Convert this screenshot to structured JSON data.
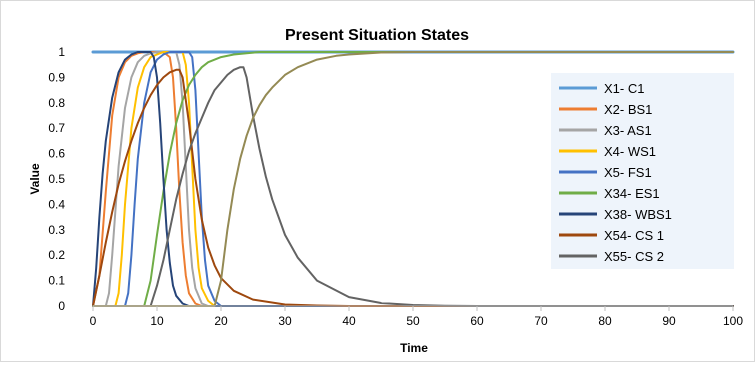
{
  "chart_data": {
    "type": "line",
    "title": "Present Situation States",
    "xlabel": "Time",
    "ylabel": "Value",
    "xlim": [
      0,
      100
    ],
    "ylim": [
      0,
      1
    ],
    "xticks": [
      "0",
      "10",
      "20",
      "30",
      "40",
      "50",
      "60",
      "70",
      "80",
      "90",
      "100"
    ],
    "yticks": [
      "0",
      "0.1",
      "0.2",
      "0.3",
      "0.4",
      "0.5",
      "0.6",
      "0.7",
      "0.8",
      "0.9",
      "1"
    ],
    "legend_position": "right",
    "grid": false,
    "series": [
      {
        "name": "X1- C1",
        "color": "#5b9bd5",
        "width": 3,
        "x": [
          0,
          100
        ],
        "y": [
          1,
          1
        ]
      },
      {
        "name": "X2- BS1",
        "color": "#ed7d31",
        "x": [
          0,
          1,
          2,
          3,
          4,
          5,
          6,
          7,
          8,
          9,
          10,
          11,
          12,
          12.5,
          13,
          13.5,
          14,
          14.5,
          15,
          16,
          17,
          18,
          20,
          100
        ],
        "y": [
          0,
          0.12,
          0.45,
          0.75,
          0.9,
          0.96,
          0.985,
          0.995,
          1,
          1,
          1,
          1,
          0.98,
          0.9,
          0.7,
          0.45,
          0.25,
          0.12,
          0.05,
          0.01,
          0,
          0,
          0,
          0
        ]
      },
      {
        "name": "X3- AS1",
        "color": "#a5a5a5",
        "x": [
          0,
          2,
          2.5,
          3,
          4,
          5,
          6,
          7,
          8,
          9,
          10,
          11,
          12,
          13,
          13.5,
          14,
          14.5,
          15,
          15.5,
          16,
          17,
          18,
          20,
          100
        ],
        "y": [
          0,
          0,
          0.05,
          0.2,
          0.55,
          0.78,
          0.9,
          0.96,
          0.985,
          0.995,
          1,
          1,
          1,
          1,
          0.95,
          0.8,
          0.55,
          0.3,
          0.15,
          0.07,
          0.01,
          0,
          0,
          0
        ]
      },
      {
        "name": "X4- WS1",
        "color": "#ffc000",
        "x": [
          0,
          3.5,
          4,
          4.5,
          5,
          6,
          7,
          8,
          9,
          10,
          11,
          12,
          13,
          14,
          14.5,
          15,
          15.5,
          16,
          16.5,
          17,
          18,
          19,
          20,
          100
        ],
        "y": [
          0,
          0,
          0.05,
          0.2,
          0.4,
          0.7,
          0.86,
          0.94,
          0.98,
          0.99,
          1,
          1,
          1,
          1,
          0.95,
          0.8,
          0.55,
          0.3,
          0.15,
          0.07,
          0.02,
          0,
          0,
          0
        ]
      },
      {
        "name": "X5- FS1",
        "color": "#4472c4",
        "x": [
          0,
          5,
          5.5,
          6,
          6.5,
          7,
          8,
          9,
          10,
          11,
          12,
          13,
          14,
          15,
          15.5,
          16,
          16.5,
          17,
          17.5,
          18,
          19,
          20,
          21,
          100
        ],
        "y": [
          0,
          0,
          0.05,
          0.2,
          0.4,
          0.58,
          0.8,
          0.92,
          0.97,
          0.99,
          1,
          1,
          1,
          1,
          0.98,
          0.85,
          0.6,
          0.35,
          0.18,
          0.08,
          0.02,
          0,
          0,
          0
        ]
      },
      {
        "name": "X34- ES1",
        "color": "#70ad47",
        "x": [
          0,
          8,
          9,
          10,
          11,
          12,
          13,
          14,
          15,
          16,
          17,
          18,
          20,
          22,
          24,
          26,
          30,
          100
        ],
        "y": [
          0,
          0,
          0.1,
          0.28,
          0.45,
          0.6,
          0.72,
          0.81,
          0.87,
          0.91,
          0.94,
          0.96,
          0.98,
          0.99,
          0.995,
          1,
          1,
          1
        ]
      },
      {
        "name": "X38- WBS1",
        "color": "#264478",
        "x": [
          0,
          0.5,
          1,
          1.5,
          2,
          3,
          4,
          5,
          6,
          7,
          8,
          9,
          9.5,
          10,
          10.5,
          11,
          11.5,
          12,
          12.5,
          13,
          14,
          15,
          100
        ],
        "y": [
          0,
          0.15,
          0.35,
          0.52,
          0.65,
          0.82,
          0.92,
          0.97,
          0.99,
          1,
          1,
          1,
          0.98,
          0.9,
          0.72,
          0.5,
          0.3,
          0.17,
          0.08,
          0.04,
          0.01,
          0,
          0
        ]
      },
      {
        "name": "X54- CS 1",
        "color": "#9e480e",
        "x": [
          0,
          1,
          2,
          3,
          4,
          5,
          6,
          7,
          8,
          9,
          10,
          11,
          12,
          13,
          13.5,
          14,
          15,
          16,
          17,
          18,
          19,
          20,
          22,
          25,
          30,
          35,
          40,
          100
        ],
        "y": [
          0,
          0.12,
          0.25,
          0.37,
          0.48,
          0.57,
          0.65,
          0.72,
          0.78,
          0.83,
          0.87,
          0.9,
          0.92,
          0.93,
          0.93,
          0.9,
          0.72,
          0.5,
          0.34,
          0.23,
          0.16,
          0.11,
          0.06,
          0.025,
          0.006,
          0.002,
          0,
          0
        ]
      },
      {
        "name": "X55- CS 2",
        "color": "#636363",
        "x": [
          0,
          9,
          10,
          11,
          12,
          13,
          14,
          15,
          16,
          17,
          18,
          19,
          20,
          21,
          22,
          23,
          23.5,
          24,
          25,
          26,
          27,
          28,
          30,
          32,
          35,
          40,
          45,
          50,
          55,
          60,
          100
        ],
        "y": [
          0,
          0,
          0.08,
          0.18,
          0.3,
          0.42,
          0.52,
          0.61,
          0.68,
          0.74,
          0.8,
          0.85,
          0.88,
          0.91,
          0.93,
          0.94,
          0.94,
          0.9,
          0.75,
          0.62,
          0.51,
          0.42,
          0.28,
          0.19,
          0.1,
          0.035,
          0.012,
          0.004,
          0.001,
          0,
          0
        ]
      },
      {
        "name": "",
        "color": "#948a54",
        "x": [
          0,
          19,
          20,
          21,
          22,
          23,
          24,
          25,
          26,
          27,
          28,
          30,
          32,
          35,
          38,
          40,
          45,
          50,
          55,
          100
        ],
        "y": [
          0,
          0,
          0.1,
          0.3,
          0.46,
          0.58,
          0.67,
          0.74,
          0.79,
          0.83,
          0.86,
          0.91,
          0.94,
          0.97,
          0.985,
          0.99,
          0.998,
          1,
          1,
          1
        ]
      }
    ]
  }
}
